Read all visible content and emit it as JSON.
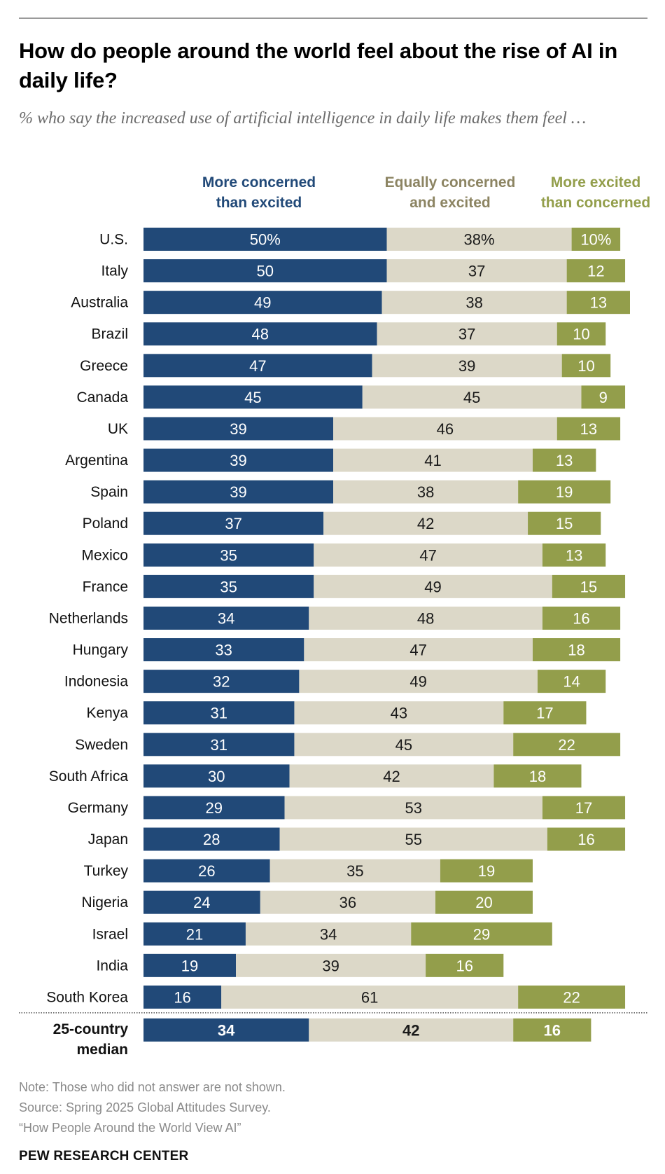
{
  "chart_data": {
    "type": "bar",
    "orientation": "horizontal",
    "stacked": true,
    "title": "How do people around the world feel about the rise of AI in daily life?",
    "subtitle": "% who say the increased use of artificial intelligence in daily life makes them feel …",
    "xlabel": "",
    "ylabel": "",
    "xlim": [
      0,
      100
    ],
    "grid": false,
    "legend": "top (column headers)",
    "categories": [
      "U.S.",
      "Italy",
      "Australia",
      "Brazil",
      "Greece",
      "Canada",
      "UK",
      "Argentina",
      "Spain",
      "Poland",
      "Mexico",
      "France",
      "Netherlands",
      "Hungary",
      "Indonesia",
      "Kenya",
      "Sweden",
      "South Africa",
      "Germany",
      "Japan",
      "Turkey",
      "Nigeria",
      "Israel",
      "India",
      "South Korea"
    ],
    "series": [
      {
        "name": "More concerned than excited",
        "color": "#214978",
        "label_color": "#ffffff",
        "values": [
          50,
          50,
          49,
          48,
          47,
          45,
          39,
          39,
          39,
          37,
          35,
          35,
          34,
          33,
          32,
          31,
          31,
          30,
          29,
          28,
          26,
          24,
          21,
          19,
          16
        ]
      },
      {
        "name": "Equally concerned and excited",
        "color": "#dcd8c8",
        "label_color": "#1a1a1a",
        "values": [
          38,
          37,
          38,
          37,
          39,
          45,
          46,
          41,
          38,
          42,
          47,
          49,
          48,
          47,
          49,
          43,
          45,
          42,
          53,
          55,
          35,
          36,
          34,
          39,
          61
        ]
      },
      {
        "name": "More excited than concerned",
        "color": "#939e4b",
        "label_color": "#ffffff",
        "values": [
          10,
          12,
          13,
          10,
          10,
          9,
          13,
          13,
          19,
          15,
          13,
          15,
          16,
          18,
          14,
          17,
          22,
          18,
          17,
          16,
          19,
          20,
          29,
          16,
          22
        ]
      }
    ],
    "first_row_suffix": "%",
    "summary_row": {
      "label_line1": "25-country",
      "label_line2": "median",
      "values": [
        34,
        42,
        16
      ]
    }
  },
  "headers": {
    "concerned": [
      "More concerned",
      "than excited"
    ],
    "equal": [
      "Equally concerned",
      "and excited"
    ],
    "excited": [
      "More excited",
      "than concerned"
    ],
    "colors": {
      "concerned": "#214978",
      "equal": "#8c8462",
      "excited": "#939e4b"
    }
  },
  "footer": {
    "note": "Note: Those who did not answer are not shown.",
    "source": "Source: Spring 2025 Global Attitudes Survey.",
    "report": "“How People Around the World View AI”",
    "brand": "PEW RESEARCH CENTER"
  }
}
